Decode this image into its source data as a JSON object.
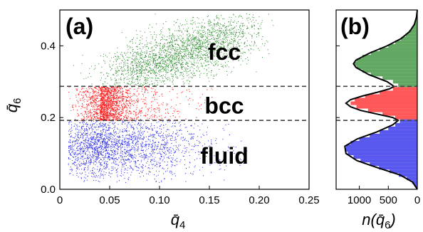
{
  "chart_data": [
    {
      "type": "scatter",
      "panel_label": "(a)",
      "xlabel": "q̄",
      "xlabel_sub": "4",
      "ylabel": "q̄",
      "ylabel_sub": "6",
      "xlim": [
        0,
        0.25
      ],
      "ylim": [
        0,
        0.5
      ],
      "xticks": [
        0,
        0.05,
        0.1,
        0.15,
        0.2,
        0.25
      ],
      "xtick_labels": [
        "0",
        "0.05",
        "0.10",
        "0.15",
        "0.20",
        "0.25"
      ],
      "yticks": [
        0,
        0.2,
        0.4
      ],
      "ytick_labels": [
        "0.0",
        "0.2",
        "0.4"
      ],
      "thresholds": [
        0.192,
        0.287
      ],
      "series": [
        {
          "name": "fcc",
          "color": "#2e8b2e",
          "cloud": {
            "x_range": [
              0.02,
              0.22
            ],
            "y_at_x0": 0.27,
            "slope": 0.9,
            "y_spread": 0.04,
            "y_min": 0.287
          }
        },
        {
          "name": "bcc",
          "color": "#ff2020",
          "cloud": {
            "x_center": 0.04,
            "x_spread": 0.025,
            "x_max": 0.16,
            "y_range": [
              0.192,
              0.287
            ]
          }
        },
        {
          "name": "fluid",
          "color": "#2020e8",
          "cloud": {
            "x_center": 0.05,
            "x_spread": 0.03,
            "x_max": 0.19,
            "y_center": 0.12,
            "y_spread": 0.045,
            "y_min": 0.02,
            "y_max": 0.192
          }
        }
      ],
      "region_labels": [
        {
          "text": "fcc",
          "x": 0.165,
          "y": 0.385
        },
        {
          "text": "bcc",
          "x": 0.165,
          "y": 0.235
        },
        {
          "text": "fluid",
          "x": 0.165,
          "y": 0.095
        }
      ]
    },
    {
      "type": "histogram",
      "panel_label": "(b)",
      "orientation": "horizontal",
      "xlabel": "n(q̄",
      "xlabel_sub": "6",
      "xlabel_end": ")",
      "xlim": [
        1400,
        0
      ],
      "xticks": [
        1000,
        500,
        0
      ],
      "xtick_labels": [
        "1000",
        "500",
        "0"
      ],
      "ylim": [
        0,
        0.5
      ],
      "bin_width": 0.005,
      "thresholds": [
        0.192,
        0.287
      ],
      "bins": [
        {
          "y": 0.01,
          "count": 40,
          "color": "#2020e8"
        },
        {
          "y": 0.02,
          "count": 90,
          "color": "#2020e8"
        },
        {
          "y": 0.03,
          "count": 180,
          "color": "#2020e8"
        },
        {
          "y": 0.04,
          "count": 320,
          "color": "#2020e8"
        },
        {
          "y": 0.05,
          "count": 480,
          "color": "#2020e8"
        },
        {
          "y": 0.06,
          "count": 660,
          "color": "#2020e8"
        },
        {
          "y": 0.07,
          "count": 820,
          "color": "#2020e8"
        },
        {
          "y": 0.08,
          "count": 980,
          "color": "#2020e8"
        },
        {
          "y": 0.09,
          "count": 1100,
          "color": "#2020e8"
        },
        {
          "y": 0.1,
          "count": 1200,
          "color": "#2020e8"
        },
        {
          "y": 0.11,
          "count": 1250,
          "color": "#2020e8"
        },
        {
          "y": 0.12,
          "count": 1230,
          "color": "#2020e8"
        },
        {
          "y": 0.13,
          "count": 1150,
          "color": "#2020e8"
        },
        {
          "y": 0.14,
          "count": 1000,
          "color": "#2020e8"
        },
        {
          "y": 0.15,
          "count": 820,
          "color": "#2020e8"
        },
        {
          "y": 0.16,
          "count": 650,
          "color": "#2020e8"
        },
        {
          "y": 0.17,
          "count": 500,
          "color": "#2020e8"
        },
        {
          "y": 0.18,
          "count": 380,
          "color": "#2020e8"
        },
        {
          "y": 0.19,
          "count": 300,
          "color": "#2020e8"
        },
        {
          "y": 0.2,
          "count": 380,
          "color": "#ff2020"
        },
        {
          "y": 0.21,
          "count": 600,
          "color": "#ff2020"
        },
        {
          "y": 0.22,
          "count": 850,
          "color": "#ff2020"
        },
        {
          "y": 0.23,
          "count": 1050,
          "color": "#ff2020"
        },
        {
          "y": 0.24,
          "count": 1150,
          "color": "#ff2020"
        },
        {
          "y": 0.25,
          "count": 1080,
          "color": "#ff2020"
        },
        {
          "y": 0.26,
          "count": 900,
          "color": "#ff2020"
        },
        {
          "y": 0.27,
          "count": 650,
          "color": "#ff2020"
        },
        {
          "y": 0.28,
          "count": 420,
          "color": "#ff2020"
        },
        {
          "y": 0.29,
          "count": 330,
          "color": "#2e8b2e"
        },
        {
          "y": 0.3,
          "count": 420,
          "color": "#2e8b2e"
        },
        {
          "y": 0.31,
          "count": 600,
          "color": "#2e8b2e"
        },
        {
          "y": 0.32,
          "count": 800,
          "color": "#2e8b2e"
        },
        {
          "y": 0.33,
          "count": 950,
          "color": "#2e8b2e"
        },
        {
          "y": 0.34,
          "count": 1050,
          "color": "#2e8b2e"
        },
        {
          "y": 0.35,
          "count": 1080,
          "color": "#2e8b2e"
        },
        {
          "y": 0.36,
          "count": 1050,
          "color": "#2e8b2e"
        },
        {
          "y": 0.37,
          "count": 950,
          "color": "#2e8b2e"
        },
        {
          "y": 0.38,
          "count": 800,
          "color": "#2e8b2e"
        },
        {
          "y": 0.39,
          "count": 650,
          "color": "#2e8b2e"
        },
        {
          "y": 0.4,
          "count": 500,
          "color": "#2e8b2e"
        },
        {
          "y": 0.41,
          "count": 380,
          "color": "#2e8b2e"
        },
        {
          "y": 0.42,
          "count": 280,
          "color": "#2e8b2e"
        },
        {
          "y": 0.43,
          "count": 200,
          "color": "#2e8b2e"
        },
        {
          "y": 0.44,
          "count": 140,
          "color": "#2e8b2e"
        },
        {
          "y": 0.45,
          "count": 90,
          "color": "#2e8b2e"
        },
        {
          "y": 0.46,
          "count": 55,
          "color": "#2e8b2e"
        },
        {
          "y": 0.47,
          "count": 30,
          "color": "#2e8b2e"
        },
        {
          "y": 0.48,
          "count": 15,
          "color": "#2e8b2e"
        }
      ],
      "fit_curve": {
        "color": "#000000",
        "points": [
          [
            0.0,
            0
          ],
          [
            0.02,
            80
          ],
          [
            0.04,
            300
          ],
          [
            0.06,
            680
          ],
          [
            0.08,
            1040
          ],
          [
            0.1,
            1230
          ],
          [
            0.12,
            1250
          ],
          [
            0.14,
            1040
          ],
          [
            0.16,
            700
          ],
          [
            0.18,
            420
          ],
          [
            0.192,
            330
          ],
          [
            0.2,
            420
          ],
          [
            0.21,
            700
          ],
          [
            0.22,
            980
          ],
          [
            0.23,
            1150
          ],
          [
            0.24,
            1230
          ],
          [
            0.25,
            1150
          ],
          [
            0.26,
            950
          ],
          [
            0.27,
            700
          ],
          [
            0.28,
            480
          ],
          [
            0.287,
            400
          ],
          [
            0.3,
            520
          ],
          [
            0.32,
            840
          ],
          [
            0.34,
            1060
          ],
          [
            0.35,
            1100
          ],
          [
            0.36,
            1060
          ],
          [
            0.38,
            820
          ],
          [
            0.4,
            520
          ],
          [
            0.42,
            280
          ],
          [
            0.44,
            130
          ],
          [
            0.46,
            50
          ],
          [
            0.48,
            15
          ],
          [
            0.5,
            0
          ]
        ]
      }
    }
  ]
}
